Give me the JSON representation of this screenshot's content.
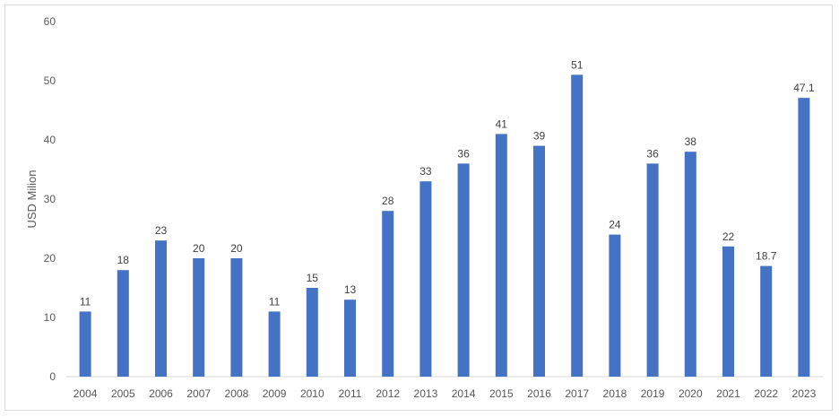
{
  "chart_data": {
    "type": "bar",
    "title": "",
    "xlabel": "",
    "ylabel": "USD Milion",
    "ylim": [
      0,
      60
    ],
    "yticks": [
      0,
      10,
      20,
      30,
      40,
      50,
      60
    ],
    "grid": false,
    "legend": "none",
    "bar_color": "#4472c4",
    "categories": [
      "2004",
      "2005",
      "2006",
      "2007",
      "2008",
      "2009",
      "2010",
      "2011",
      "2012",
      "2013",
      "2014",
      "2015",
      "2016",
      "2017",
      "2018",
      "2019",
      "2020",
      "2021",
      "2022",
      "2023"
    ],
    "values": [
      11,
      18,
      23,
      20,
      20,
      11,
      15,
      13,
      28,
      33,
      36,
      41,
      39,
      51,
      24,
      36,
      38,
      22,
      18.7,
      47.1
    ],
    "data_labels": [
      "11",
      "18",
      "23",
      "20",
      "20",
      "11",
      "15",
      "13",
      "28",
      "33",
      "36",
      "41",
      "39",
      "51",
      "24",
      "36",
      "38",
      "22",
      "18.7",
      "47.1"
    ]
  }
}
